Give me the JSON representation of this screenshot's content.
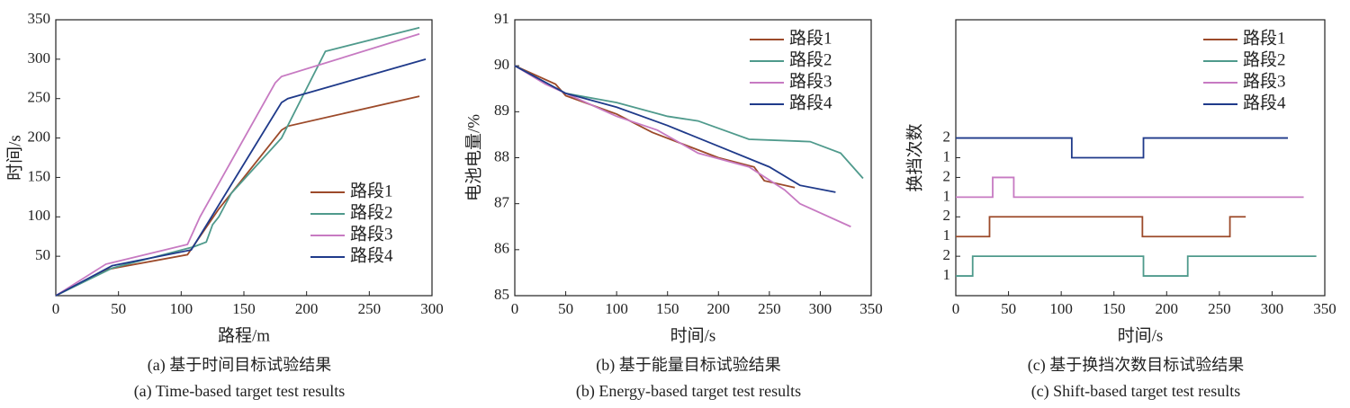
{
  "chart_data": [
    {
      "type": "line",
      "xlabel": "路程/m",
      "ylabel": "时间/s",
      "caption": [
        "(a) 基于时间目标试验结果",
        "(a) Time-based target test results"
      ],
      "xlim": [
        0,
        300
      ],
      "xticks": [
        0,
        50,
        100,
        150,
        200,
        250,
        300
      ],
      "ylim": [
        0,
        350
      ],
      "yticks": [
        50,
        100,
        150,
        200,
        250,
        300,
        350
      ],
      "legend": "lower right",
      "series": [
        {
          "name": "路段1",
          "color": "#9c4a2a",
          "x": [
            0,
            40,
            105,
            130,
            180,
            185,
            290
          ],
          "values": [
            0,
            33,
            52,
            110,
            210,
            215,
            253
          ]
        },
        {
          "name": "路段2",
          "color": "#4f9a8c",
          "x": [
            0,
            45,
            110,
            120,
            125,
            130,
            140,
            180,
            215,
            290
          ],
          "values": [
            0,
            35,
            62,
            68,
            90,
            100,
            130,
            200,
            310,
            340
          ]
        },
        {
          "name": "路段3",
          "color": "#c77ac2",
          "x": [
            0,
            40,
            105,
            115,
            175,
            180,
            290
          ],
          "values": [
            0,
            40,
            65,
            100,
            270,
            278,
            332
          ]
        },
        {
          "name": "路段4",
          "color": "#1f3a8a",
          "x": [
            0,
            45,
            108,
            180,
            185,
            295
          ],
          "values": [
            0,
            38,
            58,
            245,
            250,
            300
          ]
        }
      ]
    },
    {
      "type": "line",
      "xlabel": "时间/s",
      "ylabel": "电池电量/%",
      "caption": [
        "(b) 基于能量目标试验结果",
        "(b) Energy-based target test results"
      ],
      "xlim": [
        0,
        350
      ],
      "xticks": [
        0,
        50,
        100,
        150,
        200,
        250,
        300,
        350
      ],
      "ylim": [
        85,
        91
      ],
      "yticks": [
        85,
        86,
        87,
        88,
        89,
        90,
        91
      ],
      "legend": "upper right",
      "series": [
        {
          "name": "路段1",
          "color": "#9c4a2a",
          "x": [
            0,
            40,
            50,
            100,
            135,
            200,
            235,
            245,
            275
          ],
          "values": [
            90,
            89.6,
            89.35,
            88.95,
            88.55,
            88.0,
            87.8,
            87.5,
            87.35
          ]
        },
        {
          "name": "路段2",
          "color": "#4f9a8c",
          "x": [
            0,
            50,
            100,
            150,
            180,
            230,
            290,
            320,
            342
          ],
          "values": [
            90,
            89.4,
            89.2,
            88.9,
            88.8,
            88.4,
            88.35,
            88.1,
            87.55
          ]
        },
        {
          "name": "路段3",
          "color": "#c77ac2",
          "x": [
            0,
            30,
            50,
            100,
            140,
            180,
            230,
            265,
            280,
            330
          ],
          "values": [
            90,
            89.6,
            89.4,
            88.9,
            88.6,
            88.1,
            87.8,
            87.3,
            87.0,
            86.5
          ]
        },
        {
          "name": "路段4",
          "color": "#1f3a8a",
          "x": [
            0,
            50,
            100,
            150,
            200,
            250,
            280,
            315
          ],
          "values": [
            90,
            89.4,
            89.1,
            88.7,
            88.25,
            87.8,
            87.4,
            87.25
          ]
        }
      ]
    },
    {
      "type": "step",
      "xlabel": "时间/s",
      "ylabel": "换挡次数",
      "caption": [
        "(c) 基于换挡次数目标试验结果",
        "(c) Shift-based target test results"
      ],
      "xlim": [
        0,
        350
      ],
      "xticks": [
        0,
        50,
        100,
        150,
        200,
        250,
        300,
        350
      ],
      "ylim": [
        0,
        14
      ],
      "yticks": [
        1,
        2
      ],
      "legend": "upper right",
      "series": [
        {
          "name": "路段1",
          "color": "#9c4a2a",
          "x": [
            0,
            32,
            177,
            260,
            275
          ],
          "values": [
            1,
            2,
            1,
            2,
            2
          ]
        },
        {
          "name": "路段2",
          "color": "#4f9a8c",
          "x": [
            0,
            16,
            178,
            220,
            342
          ],
          "values": [
            1,
            2,
            1,
            2,
            2
          ]
        },
        {
          "name": "路段3",
          "color": "#c77ac2",
          "x": [
            0,
            35,
            55,
            330
          ],
          "values": [
            1,
            2,
            1,
            1
          ]
        },
        {
          "name": "路段4",
          "color": "#1f3a8a",
          "x": [
            0,
            110,
            178,
            315
          ],
          "values": [
            2,
            1,
            2,
            2
          ]
        }
      ]
    }
  ]
}
